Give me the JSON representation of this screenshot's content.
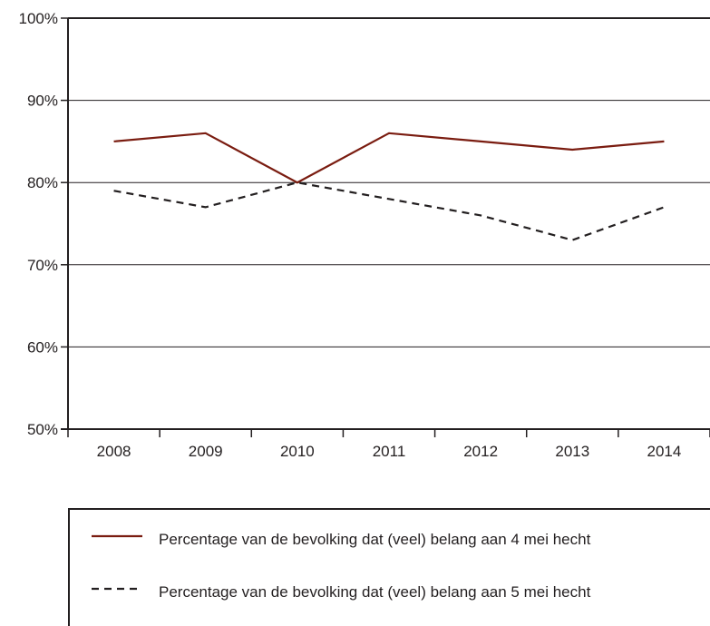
{
  "chart_data": {
    "type": "line",
    "categories": [
      "2008",
      "2009",
      "2010",
      "2011",
      "2012",
      "2013",
      "2014"
    ],
    "ylim": [
      50,
      100
    ],
    "yticks": [
      "50%",
      "60%",
      "70%",
      "80%",
      "90%",
      "100%"
    ],
    "ytick_values": [
      50,
      60,
      70,
      80,
      90,
      100
    ],
    "grid": true,
    "legend_position": "bottom",
    "series": [
      {
        "name": "Percentage van de bevolking dat (veel) belang aan 4 mei hecht",
        "values": [
          85,
          86,
          80,
          86,
          85,
          84,
          85
        ],
        "color": "#7a1c10",
        "style": "solid"
      },
      {
        "name": "Percentage van de bevolking dat (veel) belang aan 5 mei hecht",
        "values": [
          79,
          77,
          80,
          78,
          76,
          73,
          77
        ],
        "color": "#231f20",
        "style": "dashed"
      }
    ]
  },
  "legend": {
    "item1_label": "Percentage van de bevolking dat (veel) belang aan 4 mei hecht",
    "item2_label": "Percentage van de bevolking dat (veel) belang aan 5 mei hecht"
  }
}
